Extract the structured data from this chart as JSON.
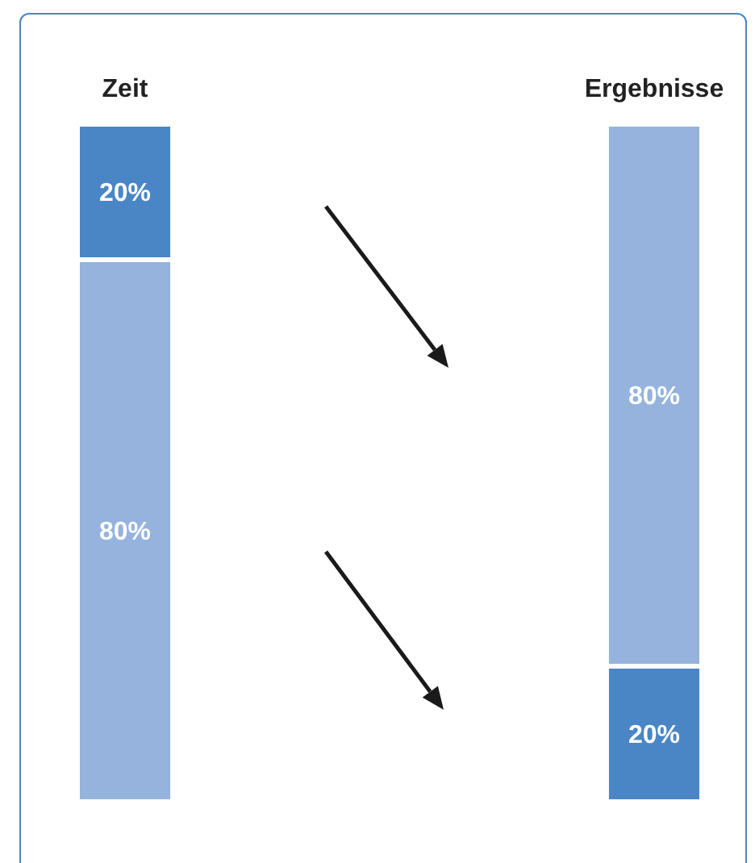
{
  "chart_data": {
    "type": "bar",
    "stacked": true,
    "categories": [
      "Zeit",
      "Ergebnisse"
    ],
    "series": [
      {
        "values": [
          80,
          20
        ],
        "colors": [
          "#95b3dc",
          "#4a86c5"
        ],
        "value_labels": [
          "80%",
          "20%"
        ]
      },
      {
        "values": [
          20,
          80
        ],
        "colors": [
          "#4a86c5",
          "#95b3dc"
        ],
        "value_labels": [
          "20%",
          "80%"
        ]
      }
    ]
  }
}
